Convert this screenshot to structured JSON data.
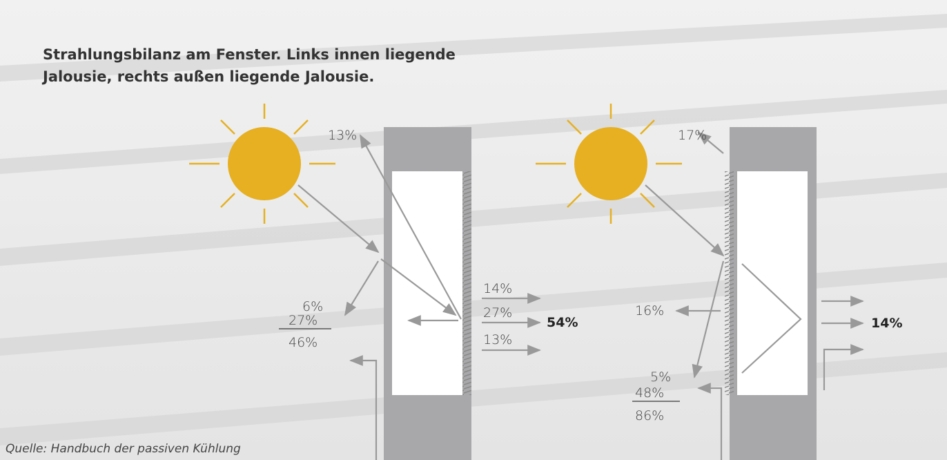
{
  "header": {
    "title_lines": [
      "Strahlungsbilanz am Fenster. Links innen liegende",
      "Jalousie, rechts außen liegende Jalousie."
    ]
  },
  "source": "Quelle: Handbuch der passiven Kühlung",
  "left": {
    "reflected": "13%",
    "outer_reflected": "6%",
    "returned": "27%",
    "returned_total": "46%",
    "inward": [
      "14%",
      "27%",
      "13%"
    ],
    "inward_total": "54%"
  },
  "right": {
    "reflected": "17%",
    "outer_heat": "16%",
    "outer_reflected": "5%",
    "returned": "48%",
    "returned_total": "86%",
    "inward_total": "14%"
  }
}
